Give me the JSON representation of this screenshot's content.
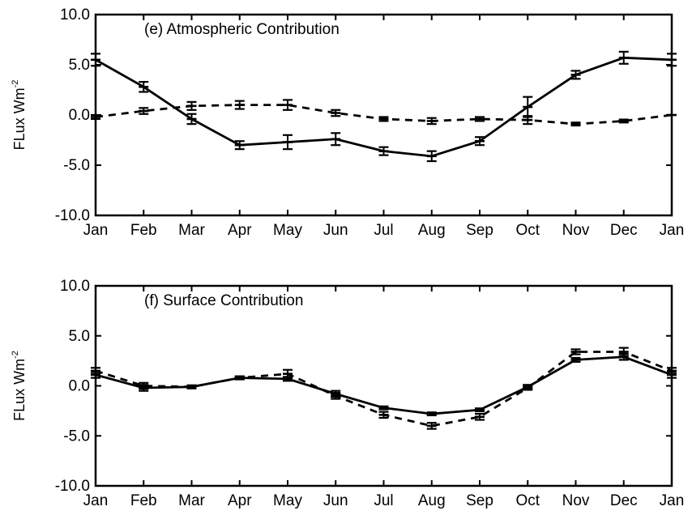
{
  "chart_data": [
    {
      "type": "line",
      "title": "(e) Atmospheric Contribution",
      "ylabel_main": "FLux Wm",
      "ylabel_sup": "-2",
      "categories": [
        "Jan",
        "Feb",
        "Mar",
        "Apr",
        "May",
        "Jun",
        "Jul",
        "Aug",
        "Sep",
        "Oct",
        "Nov",
        "Dec",
        "Jan"
      ],
      "ylim": [
        -10,
        10
      ],
      "yticks": [
        "10.0",
        "5.0",
        "0.0",
        "-5.0",
        "-10.0"
      ],
      "ytick_values": [
        10,
        5,
        0,
        -5,
        -10
      ],
      "grid": false,
      "series": [
        {
          "style": "solid",
          "values": [
            5.5,
            2.8,
            -0.4,
            -3.0,
            -2.7,
            -2.4,
            -3.6,
            -4.1,
            -2.6,
            0.8,
            4.0,
            5.7,
            5.5
          ],
          "errors": [
            0.6,
            0.5,
            0.5,
            0.4,
            0.7,
            0.6,
            0.4,
            0.5,
            0.4,
            1.0,
            0.4,
            0.6,
            0.6
          ]
        },
        {
          "style": "dashed",
          "values": [
            -0.2,
            0.4,
            0.9,
            1.0,
            1.0,
            0.2,
            -0.4,
            -0.6,
            -0.4,
            -0.5,
            -0.9,
            -0.6,
            0.0
          ],
          "errors": [
            0.2,
            0.3,
            0.4,
            0.4,
            0.5,
            0.3,
            0.2,
            0.3,
            0.2,
            0.4,
            0.15,
            0.15,
            0.0
          ]
        }
      ]
    },
    {
      "type": "line",
      "title": "(f) Surface Contribution",
      "ylabel_main": "FLux Wm",
      "ylabel_sup": "-2",
      "categories": [
        "Jan",
        "Feb",
        "Mar",
        "Apr",
        "May",
        "Jun",
        "Jul",
        "Aug",
        "Sep",
        "Oct",
        "Nov",
        "Dec",
        "Jan"
      ],
      "ylim": [
        -10,
        10
      ],
      "yticks": [
        "10.0",
        "5.0",
        "0.0",
        "-5.0",
        "-10.0"
      ],
      "ytick_values": [
        10,
        5,
        0,
        -5,
        -10
      ],
      "grid": false,
      "series": [
        {
          "style": "solid",
          "values": [
            1.1,
            -0.2,
            -0.1,
            0.8,
            0.7,
            -0.8,
            -2.2,
            -2.8,
            -2.4,
            -0.1,
            2.6,
            2.9,
            1.1
          ],
          "errors": [
            0.3,
            0.3,
            0.15,
            0.15,
            0.2,
            0.3,
            0.15,
            0.15,
            0.15,
            0.2,
            0.2,
            0.3,
            0.3
          ]
        },
        {
          "style": "dashed",
          "values": [
            1.5,
            0.0,
            -0.1,
            0.8,
            1.2,
            -1.0,
            -2.9,
            -4.0,
            -3.1,
            -0.2,
            3.4,
            3.4,
            1.5
          ],
          "errors": [
            0.3,
            0.3,
            0.15,
            0.15,
            0.4,
            0.3,
            0.3,
            0.3,
            0.3,
            0.2,
            0.25,
            0.4,
            0.3
          ]
        }
      ]
    }
  ]
}
